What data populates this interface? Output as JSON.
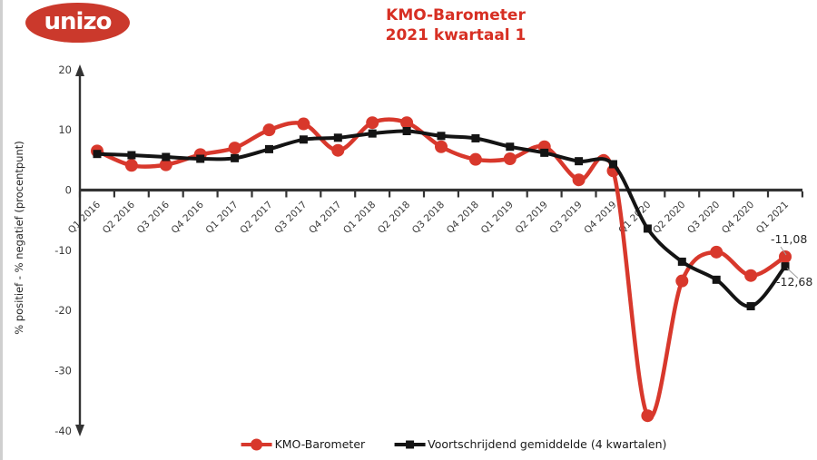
{
  "page": {
    "background": "#ffffff",
    "left_strip_color": "#cfcfcf"
  },
  "logo": {
    "text": "unizo",
    "bg_color": "#cb392c",
    "text_color": "#ffffff"
  },
  "title": {
    "line1": "KMO-Barometer",
    "line2": "2021 kwartaal 1",
    "color": "#d72f23"
  },
  "chart_data": {
    "type": "line",
    "title": "KMO-Barometer 2021 kwartaal 1",
    "ylabel": "% positief - % negatief (procentpunt)",
    "xlabel": "",
    "ylim": [
      -40,
      20
    ],
    "yticks": [
      20,
      10,
      0,
      -10,
      -20,
      -30,
      -40
    ],
    "grid": false,
    "legend_position": "bottom",
    "x_axis_arrow": false,
    "y_axis_arrows": "both-ends",
    "categories": [
      "Q1 2016",
      "Q2 2016",
      "Q3 2016",
      "Q4 2016",
      "Q1 2017",
      "Q2 2017",
      "Q3 2017",
      "Q4 2017",
      "Q1 2018",
      "Q2 2018",
      "Q3 2018",
      "Q4 2018",
      "Q1 2019",
      "Q2 2019",
      "Q3 2019",
      "Q4 2019",
      "Q1 2020",
      "Q2 2020",
      "Q3 2020",
      "Q4 2020",
      "Q1 2021"
    ],
    "series": [
      {
        "name": "KMO-Barometer",
        "color": "#d8382c",
        "marker": "circle",
        "smooth": true,
        "values": [
          6.5,
          4.1,
          4.2,
          5.9,
          7.0,
          10.0,
          11.0,
          6.6,
          11.2,
          11.2,
          7.2,
          5.1,
          5.2,
          7.2,
          1.7,
          3.2,
          -37.5,
          -15.1,
          -10.3,
          -14.2,
          -11.08
        ]
      },
      {
        "name": "Voortschrijdend gemiddelde (4 kwartalen)",
        "color": "#141414",
        "marker": "square",
        "smooth": true,
        "values": [
          6.0,
          5.8,
          5.5,
          5.2,
          5.3,
          6.8,
          8.4,
          8.7,
          9.4,
          9.8,
          9.0,
          8.6,
          7.2,
          6.2,
          4.8,
          4.3,
          -6.4,
          -11.9,
          -14.9,
          -19.3,
          -12.68
        ]
      }
    ],
    "annotations": [
      {
        "text": "-11,08",
        "series": "KMO-Barometer",
        "category": "Q1 2021",
        "value": -11.08
      },
      {
        "text": "-12,68",
        "series": "Voortschrijdend gemiddelde (4 kwartalen)",
        "category": "Q1 2021",
        "value": -12.68
      }
    ]
  }
}
